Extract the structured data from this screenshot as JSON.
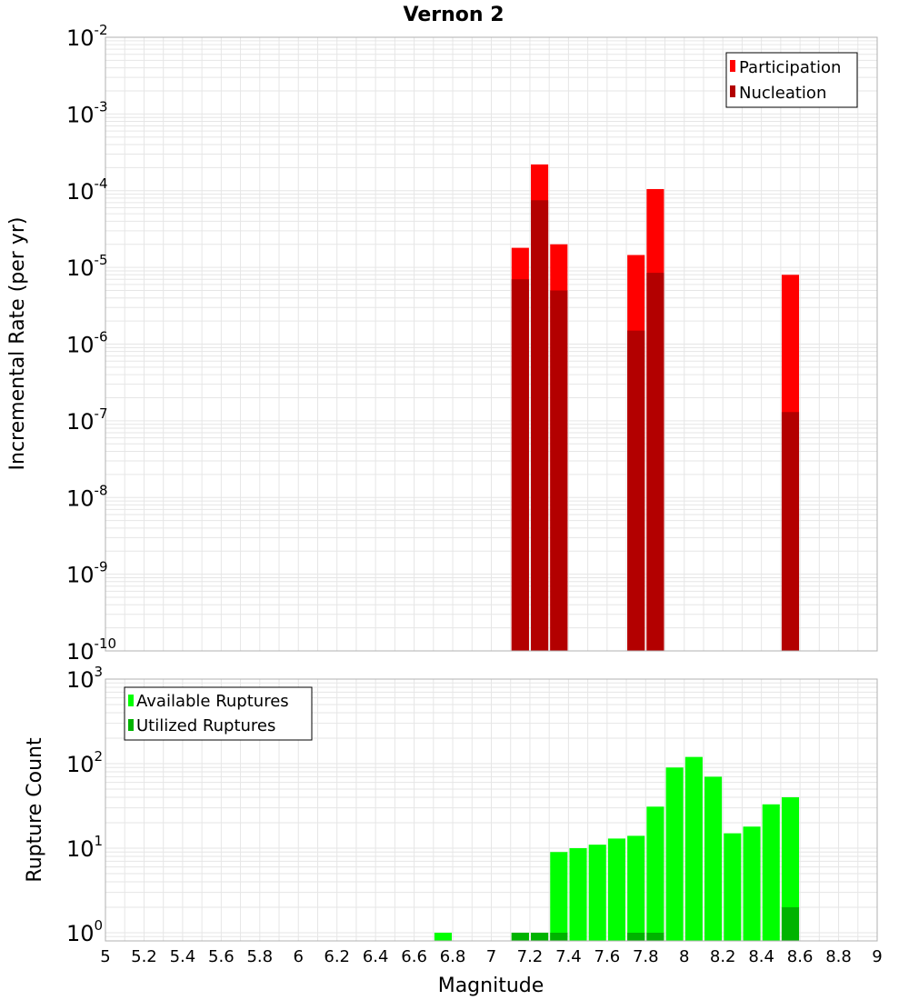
{
  "title": "Vernon 2",
  "xlabel": "Magnitude",
  "colors": {
    "participation": "#ff0000",
    "nucleation": "#b30000",
    "available": "#00ff00",
    "utilized": "#00b300",
    "grid": "#e6e6e6",
    "frame": "#b0b0b0"
  },
  "x_ticks": [
    "5",
    "5.2",
    "5.4",
    "5.6",
    "5.8",
    "6",
    "6.2",
    "6.4",
    "6.6",
    "6.8",
    "7",
    "7.2",
    "7.4",
    "7.6",
    "7.8",
    "8",
    "8.2",
    "8.4",
    "8.6",
    "8.8",
    "9"
  ],
  "chart_data": [
    {
      "type": "bar",
      "panel": "top",
      "ylabel": "Incremental Rate (per yr)",
      "xlim": [
        5,
        9
      ],
      "ylim": [
        1e-10,
        0.01
      ],
      "yscale": "log",
      "grid": true,
      "legend_position": "top-right",
      "y_ticks": [
        {
          "base": "10",
          "exp": "-2"
        },
        {
          "base": "10",
          "exp": "-3"
        },
        {
          "base": "10",
          "exp": "-4"
        },
        {
          "base": "10",
          "exp": "-5"
        },
        {
          "base": "10",
          "exp": "-6"
        },
        {
          "base": "10",
          "exp": "-7"
        },
        {
          "base": "10",
          "exp": "-8"
        },
        {
          "base": "10",
          "exp": "-9"
        },
        {
          "base": "10",
          "exp": "-10"
        }
      ],
      "x": [
        7.15,
        7.25,
        7.35,
        7.75,
        7.85,
        8.55
      ],
      "series": [
        {
          "name": "Participation",
          "values": [
            1.8e-05,
            0.00022,
            2e-05,
            1.45e-05,
            0.000105,
            8e-06
          ]
        },
        {
          "name": "Nucleation",
          "values": [
            7e-06,
            7.5e-05,
            5e-06,
            1.5e-06,
            8.5e-06,
            1.3e-07
          ]
        }
      ]
    },
    {
      "type": "bar",
      "panel": "bottom",
      "ylabel": "Rupture Count",
      "xlim": [
        5,
        9
      ],
      "ylim": [
        0.8,
        1000
      ],
      "yscale": "log",
      "grid": true,
      "legend_position": "top-left",
      "y_ticks": [
        {
          "base": "10",
          "exp": "3"
        },
        {
          "base": "10",
          "exp": "2"
        },
        {
          "base": "10",
          "exp": "1"
        },
        {
          "base": "10",
          "exp": "0"
        }
      ],
      "x": [
        6.75,
        7.15,
        7.25,
        7.35,
        7.45,
        7.55,
        7.65,
        7.75,
        7.85,
        7.95,
        8.05,
        8.15,
        8.25,
        8.35,
        8.45,
        8.55
      ],
      "series": [
        {
          "name": "Available Ruptures",
          "values": [
            1,
            1,
            1,
            9,
            10,
            11,
            13,
            14,
            31,
            90,
            120,
            70,
            15,
            18,
            33,
            40
          ]
        },
        {
          "name": "Utilized Ruptures",
          "values": [
            0,
            1,
            1,
            1,
            0,
            0,
            0,
            1,
            1,
            0,
            0,
            0,
            0,
            0,
            0,
            2
          ]
        }
      ]
    }
  ]
}
